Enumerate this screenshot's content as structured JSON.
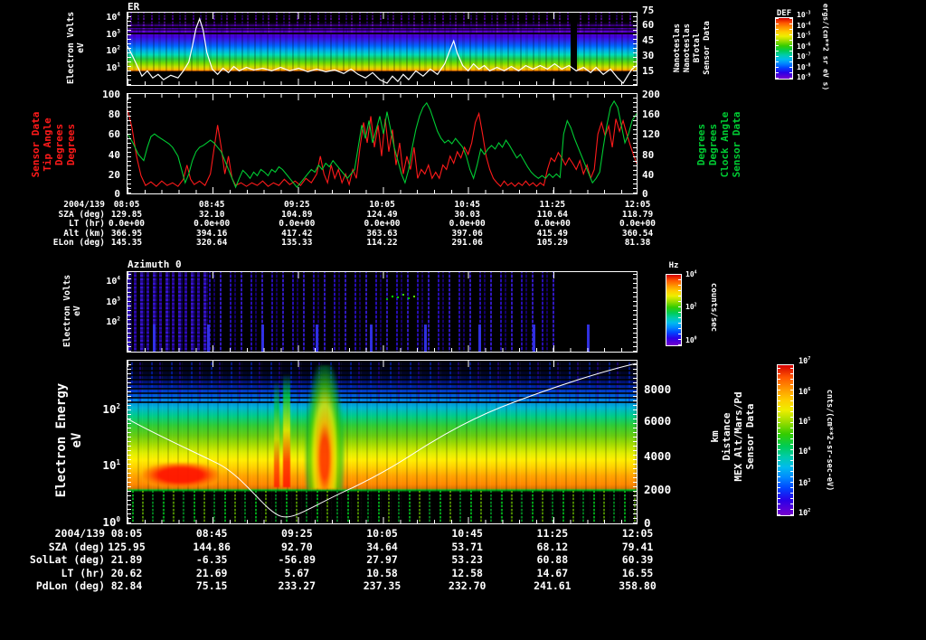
{
  "labels": {
    "p1_title": "ER",
    "p3_title": "Azimuth 0",
    "def_title": "DEF",
    "hz_title": "Hz",
    "p1_ylabel": [
      "Electron Volts",
      "eV"
    ],
    "p1_rlabel": [
      "Nanoteslas",
      "Nanoteslas",
      "BTotal",
      "Sensor Data"
    ],
    "p2_llabel": [
      "Sensor Data",
      "Tip Angle",
      "Degrees",
      "Degrees"
    ],
    "p2_rlabel": [
      "Degrees",
      "Degrees",
      "Clock Angle",
      "Sensor Data"
    ],
    "p3_ylabel": [
      "Electron Volts",
      "eV"
    ],
    "p4_ylabel": [
      "Electron Energy",
      "eV"
    ],
    "p4_rlabel": [
      "km",
      "Distance",
      "MEX Alt/Mars/Pd",
      "Sensor Data"
    ],
    "def_units": "ergs/(cm**2 sr eV s)",
    "hz_units": "counts/sec",
    "cb4_units": "cnts/(cm**2-sr-sec-eV)"
  },
  "colors": {
    "red_series": "#ff1a1a",
    "green_series": "#00cc33",
    "white_line": "#ffffff"
  },
  "axes": {
    "p1l": [
      {
        "e": "4",
        "y": 1
      },
      {
        "e": "3",
        "y": 20
      },
      {
        "e": "2",
        "y": 38
      },
      {
        "e": "1",
        "y": 57
      }
    ],
    "p1r": [
      {
        "t": "75",
        "y": -7
      },
      {
        "t": "60",
        "y": 9
      },
      {
        "t": "45",
        "y": 26
      },
      {
        "t": "30",
        "y": 43
      },
      {
        "t": "15",
        "y": 60
      }
    ],
    "def": [
      {
        "e": "-3",
        "y": -6
      },
      {
        "e": "-4",
        "y": 6
      },
      {
        "e": "-5",
        "y": 17
      },
      {
        "e": "-6",
        "y": 29
      },
      {
        "e": "-7",
        "y": 40
      },
      {
        "e": "-8",
        "y": 52
      },
      {
        "e": "-9",
        "y": 63
      }
    ],
    "p2l": [
      {
        "t": "100",
        "y": -4
      },
      {
        "t": "80",
        "y": 18
      },
      {
        "t": "60",
        "y": 40
      },
      {
        "t": "40",
        "y": 63
      },
      {
        "t": "20",
        "y": 85
      },
      {
        "t": "0",
        "y": 106
      }
    ],
    "p2r": [
      {
        "t": "200",
        "y": -4
      },
      {
        "t": "160",
        "y": 18
      },
      {
        "t": "120",
        "y": 40
      },
      {
        "t": "80",
        "y": 63
      },
      {
        "t": "40",
        "y": 85
      },
      {
        "t": "0",
        "y": 106
      }
    ],
    "p3l": [
      {
        "e": "4",
        "y": 6
      },
      {
        "e": "3",
        "y": 29
      },
      {
        "e": "2",
        "y": 51
      }
    ],
    "hz": [
      {
        "e": "4",
        "y": -3
      },
      {
        "e": "2",
        "y": 33
      },
      {
        "e": "0",
        "y": 70
      }
    ],
    "p4l": [
      {
        "e": "2",
        "y": 48
      },
      {
        "e": "1",
        "y": 110
      },
      {
        "e": "0",
        "y": 173
      }
    ],
    "p4r": [
      {
        "t": "8000",
        "y": 26
      },
      {
        "t": "6000",
        "y": 61
      },
      {
        "t": "4000",
        "y": 100
      },
      {
        "t": "2000",
        "y": 137
      },
      {
        "t": "0",
        "y": 174
      }
    ],
    "cb4": [
      {
        "e": "7",
        "y": -7
      },
      {
        "e": "6",
        "y": 27
      },
      {
        "e": "5",
        "y": 60
      },
      {
        "e": "4",
        "y": 93
      },
      {
        "e": "3",
        "y": 128
      },
      {
        "e": "2",
        "y": 161
      }
    ]
  },
  "chart_data": [
    {
      "type": "heatmap",
      "title": "ER",
      "ylabel": "Electron Volts eV",
      "yscale": "log",
      "yticks": [
        "10^1",
        "10^2",
        "10^3",
        "10^4"
      ],
      "xticks": [
        "08:05",
        "08:45",
        "09:25",
        "10:05",
        "10:45",
        "11:25",
        "12:05"
      ],
      "y2label": "Sensor Data BTotal Nanoteslas Nanoteslas",
      "y2ticks": [
        15,
        30,
        45,
        60,
        75
      ],
      "colorbar": {
        "title": "DEF",
        "units": "ergs/(cm**2 sr eV s)",
        "ticks": [
          "10^-3",
          "10^-4",
          "10^-5",
          "10^-6",
          "10^-7",
          "10^-8",
          "10^-9"
        ]
      },
      "overlay_line": {
        "name": "BTotal (Nanoteslas)",
        "color": "#ffffff",
        "approx_values_at_xticks": [
          42,
          18,
          22,
          30,
          25,
          24,
          20
        ]
      }
    },
    {
      "type": "line",
      "xticks": [
        "08:05",
        "08:45",
        "09:25",
        "10:05",
        "10:45",
        "11:25",
        "12:05"
      ],
      "grid": false,
      "series": [
        {
          "name": "Sensor Data Tip Angle Degrees",
          "color": "#ff1a1a",
          "axis": "left",
          "ylim": [
            0,
            100
          ],
          "approx_values_at_xticks": [
            82,
            8,
            12,
            60,
            25,
            10,
            35
          ]
        },
        {
          "name": "Sensor Data Clock Angle Degrees",
          "color": "#00cc33",
          "axis": "right",
          "ylim": [
            0,
            200
          ],
          "approx_values_at_xticks": [
            110,
            40,
            30,
            170,
            60,
            35,
            120
          ]
        }
      ]
    },
    {
      "type": "table",
      "title": "upper ephemeris annotation",
      "rows": [
        {
          "label": "2004/139",
          "values": [
            "08:05",
            "08:45",
            "09:25",
            "10:05",
            "10:45",
            "11:25",
            "12:05"
          ]
        },
        {
          "label": "SZA (deg)",
          "values": [
            "129.85",
            "32.10",
            "104.89",
            "124.49",
            "30.03",
            "110.64",
            "118.79"
          ]
        },
        {
          "label": "LT (hr)",
          "values": [
            "0.0e+00",
            "0.0e+00",
            "0.0e+00",
            "0.0e+00",
            "0.0e+00",
            "0.0e+00",
            "0.0e+00"
          ]
        },
        {
          "label": "Alt (km)",
          "values": [
            "366.95",
            "394.16",
            "417.42",
            "363.63",
            "397.06",
            "415.49",
            "360.54"
          ]
        },
        {
          "label": "ELon (deg)",
          "values": [
            "145.35",
            "320.64",
            "135.33",
            "114.22",
            "291.06",
            "105.29",
            "81.38"
          ]
        }
      ]
    },
    {
      "type": "heatmap",
      "title": "Azimuth 0",
      "ylabel": "Electron Volts eV",
      "yscale": "log",
      "yticks": [
        "10^2",
        "10^3",
        "10^4"
      ],
      "colorbar": {
        "title": "Hz",
        "units": "counts/sec",
        "ticks": [
          "10^0",
          "10^2",
          "10^4"
        ]
      }
    },
    {
      "type": "heatmap",
      "ylabel": "Electron Energy eV",
      "yscale": "log",
      "yticks": [
        "10^0",
        "10^1",
        "10^2"
      ],
      "y2label": "Sensor Data MEX Alt/Mars/Pd Distance km",
      "y2ticks": [
        0,
        2000,
        4000,
        6000,
        8000
      ],
      "colorbar": {
        "units": "cnts/(cm**2-sr-sec-eV)",
        "ticks": [
          "10^2",
          "10^3",
          "10^4",
          "10^5",
          "10^6",
          "10^7"
        ]
      },
      "overlay_line": {
        "name": "MEX Alt/Mars/Pd Distance (km)",
        "color": "#ffffff",
        "shape": "V curve, minimum near 09:20, rises to top right"
      }
    },
    {
      "type": "table",
      "title": "lower ephemeris annotation",
      "rows": [
        {
          "label": "2004/139",
          "values": [
            "08:05",
            "08:45",
            "09:25",
            "10:05",
            "10:45",
            "11:25",
            "12:05"
          ]
        },
        {
          "label": "SZA (deg)",
          "values": [
            "125.95",
            "144.86",
            "92.70",
            "34.64",
            "53.71",
            "68.12",
            "79.41"
          ]
        },
        {
          "label": "SolLat (deg)",
          "values": [
            "21.89",
            "-6.35",
            "-56.89",
            "27.97",
            "53.23",
            "60.88",
            "60.39"
          ]
        },
        {
          "label": "LT (hr)",
          "values": [
            "20.62",
            "21.69",
            "5.67",
            "10.58",
            "12.58",
            "14.67",
            "16.55"
          ]
        },
        {
          "label": "PdLon (deg)",
          "values": [
            "82.84",
            "75.15",
            "233.27",
            "237.35",
            "232.70",
            "241.61",
            "358.80"
          ]
        }
      ]
    }
  ]
}
